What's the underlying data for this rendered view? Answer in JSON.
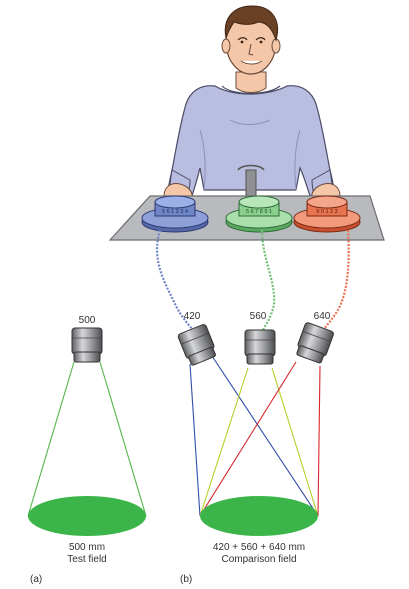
{
  "colors": {
    "green_field": "#3bb54a",
    "blue_knob": "#6f86c6",
    "green_knob": "#8bcf8f",
    "red_knob": "#e8734f",
    "shirt": "#b9bde0",
    "skin": "#f3c7a8",
    "hair": "#6b4126",
    "table": "#b9babd",
    "blue_ray": "#2f4fa8",
    "yellow_ray": "#b6cf2a",
    "red_ray": "#d8262b",
    "green_ray": "#53b649"
  },
  "panel_a": {
    "projector_label": "500",
    "caption_line1": "500 mm",
    "caption_line2": "Test field",
    "panel_letter": "(a)"
  },
  "panel_b": {
    "projectors": [
      {
        "label": "420",
        "icon": "projector-icon"
      },
      {
        "label": "560",
        "icon": "projector-icon"
      },
      {
        "label": "640",
        "icon": "projector-icon"
      }
    ],
    "caption_line1": "420 + 560 + 640 mm",
    "caption_line2": "Comparison field",
    "panel_letter": "(b)"
  },
  "knobs": [
    {
      "color": "blue",
      "scale": "5 6 1 2 3 4"
    },
    {
      "color": "green",
      "scale": "5 6 7 8 9 1"
    },
    {
      "color": "red",
      "scale": "9 0 1 2 3"
    }
  ]
}
